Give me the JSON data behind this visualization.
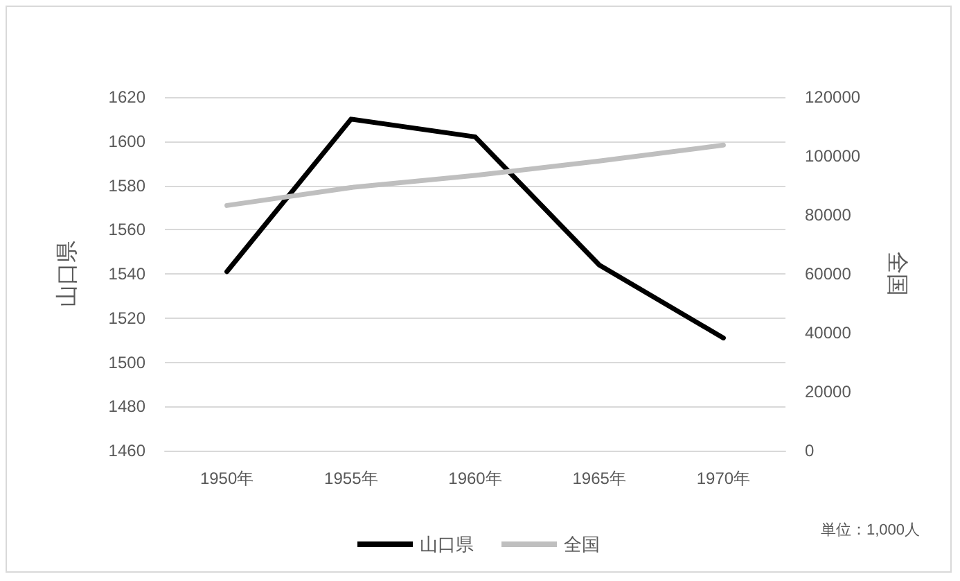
{
  "chart_data": {
    "type": "line",
    "ylabel": "山口県",
    "y2label": "全国",
    "categories": [
      "1950年",
      "1955年",
      "1960年",
      "1965年",
      "1970年"
    ],
    "series": [
      {
        "name": "山口県",
        "color": "#000000",
        "values": [
          1541,
          1610,
          1602,
          1544,
          1511
        ]
      },
      {
        "name": "全国",
        "color": "#bfbfbf",
        "axis": "y2",
        "values": [
          83200,
          89300,
          93400,
          98300,
          103700
        ]
      }
    ],
    "ylim": [
      1460,
      1620
    ],
    "yticks": [
      1460,
      1480,
      1500,
      1520,
      1540,
      1560,
      1580,
      1600,
      1620
    ],
    "y2lim": [
      0,
      120000
    ],
    "y2ticks": [
      0,
      20000,
      40000,
      60000,
      80000,
      100000,
      120000
    ],
    "annotations": [
      "単位：1,000人"
    ],
    "grid": "y",
    "legend": "bottom",
    "marker": "none",
    "line_style": "solid"
  }
}
